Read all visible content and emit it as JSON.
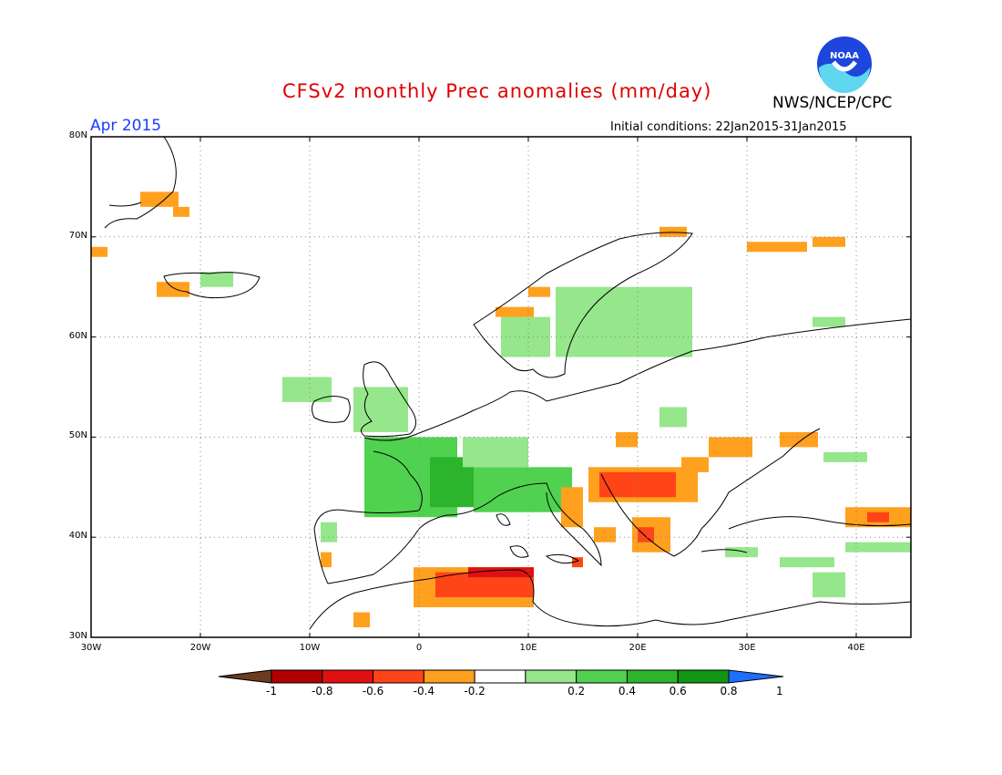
{
  "title": "CFSv2 monthly Prec anomalies (mm/day)",
  "agency": "NWS/NCEP/CPC",
  "logo_text": "NOAA",
  "valid_month": "Apr 2015",
  "initial_conditions": "Initial conditions: 22Jan2015-31Jan2015",
  "map": {
    "lon_range": [
      -30,
      45
    ],
    "lat_range": [
      30,
      80
    ],
    "lat_ticks": [
      "80N",
      "70N",
      "60N",
      "50N",
      "40N",
      "30N"
    ],
    "lon_ticks": [
      "30W",
      "20W",
      "10W",
      "0",
      "10E",
      "20E",
      "30E",
      "40E"
    ],
    "grid": "dotted"
  },
  "colorbar": {
    "ticks": [
      "-1",
      "-0.8",
      "-0.6",
      "-0.4",
      "-0.2",
      "0.2",
      "0.4",
      "0.6",
      "0.8",
      "1"
    ],
    "colors": {
      "below_-1": "#6b3c1e",
      "-1_-0.8": "#b20000",
      "-0.8_-0.6": "#e01010",
      "-0.6_-0.4": "#ff4418",
      "-0.4_-0.2": "#ffa01e",
      "-0.2_0.2": "#ffffff",
      "0.2_0.4": "#96e68c",
      "0.4_0.6": "#50d250",
      "0.6_0.8": "#2db42d",
      "0.8_1": "#119611",
      "above_1": "#1e6eff"
    }
  },
  "anomaly_cells": [
    {
      "lon": -25.5,
      "lat": 73.0,
      "w": 3.5,
      "h": 1.5,
      "cls": "-0.4_-0.2"
    },
    {
      "lon": -22.5,
      "lat": 72.0,
      "w": 1.5,
      "h": 1.0,
      "cls": "-0.4_-0.2"
    },
    {
      "lon": -30.0,
      "lat": 68.0,
      "w": 1.5,
      "h": 1.0,
      "cls": "-0.4_-0.2"
    },
    {
      "lon": -24.0,
      "lat": 64.0,
      "w": 3.0,
      "h": 1.5,
      "cls": "-0.4_-0.2"
    },
    {
      "lon": -20.0,
      "lat": 65.0,
      "w": 3.0,
      "h": 1.5,
      "cls": "0.2_0.4"
    },
    {
      "lon": -12.5,
      "lat": 53.5,
      "w": 4.5,
      "h": 2.5,
      "cls": "0.2_0.4"
    },
    {
      "lon": -6.0,
      "lat": 50.5,
      "w": 5.0,
      "h": 4.5,
      "cls": "0.2_0.4"
    },
    {
      "lon": -5.0,
      "lat": 42.0,
      "w": 8.5,
      "h": 8.0,
      "cls": "0.4_0.6"
    },
    {
      "lon": 1.0,
      "lat": 43.0,
      "w": 4.0,
      "h": 5.0,
      "cls": "0.6_0.8"
    },
    {
      "lon": 5.0,
      "lat": 42.5,
      "w": 9.0,
      "h": 4.5,
      "cls": "0.4_0.6"
    },
    {
      "lon": 4.0,
      "lat": 47.0,
      "w": 6.0,
      "h": 3.0,
      "cls": "0.2_0.4"
    },
    {
      "lon": -9.0,
      "lat": 39.5,
      "w": 1.5,
      "h": 2.0,
      "cls": "0.2_0.4"
    },
    {
      "lon": -9.0,
      "lat": 37.0,
      "w": 1.0,
      "h": 1.5,
      "cls": "-0.4_-0.2"
    },
    {
      "lon": 8.0,
      "lat": 59.0,
      "w": 3.0,
      "h": 1.5,
      "cls": "0.6_0.8"
    },
    {
      "lon": 7.5,
      "lat": 58.0,
      "w": 4.5,
      "h": 4.0,
      "cls": "0.2_0.4"
    },
    {
      "lon": 12.5,
      "lat": 58.0,
      "w": 12.5,
      "h": 7.0,
      "cls": "0.2_0.4"
    },
    {
      "lon": 7.0,
      "lat": 62.0,
      "w": 3.5,
      "h": 1.0,
      "cls": "-0.4_-0.2"
    },
    {
      "lon": 10.0,
      "lat": 64.0,
      "w": 2.0,
      "h": 1.0,
      "cls": "-0.4_-0.2"
    },
    {
      "lon": 22.0,
      "lat": 70.0,
      "w": 2.5,
      "h": 1.0,
      "cls": "-0.4_-0.2"
    },
    {
      "lon": 30.0,
      "lat": 68.5,
      "w": 5.5,
      "h": 1.0,
      "cls": "-0.4_-0.2"
    },
    {
      "lon": 36.0,
      "lat": 69.0,
      "w": 3.0,
      "h": 1.0,
      "cls": "-0.4_-0.2"
    },
    {
      "lon": 36.0,
      "lat": 61.0,
      "w": 3.0,
      "h": 1.0,
      "cls": "0.2_0.4"
    },
    {
      "lon": 22.0,
      "lat": 51.0,
      "w": 2.5,
      "h": 2.0,
      "cls": "0.2_0.4"
    },
    {
      "lon": 15.5,
      "lat": 43.5,
      "w": 10.0,
      "h": 3.5,
      "cls": "-0.4_-0.2"
    },
    {
      "lon": 16.5,
      "lat": 44.0,
      "w": 7.0,
      "h": 2.5,
      "cls": "-0.6_-0.4"
    },
    {
      "lon": 13.0,
      "lat": 41.0,
      "w": 2.0,
      "h": 4.0,
      "cls": "-0.4_-0.2"
    },
    {
      "lon": 16.0,
      "lat": 39.5,
      "w": 2.0,
      "h": 1.5,
      "cls": "-0.4_-0.2"
    },
    {
      "lon": 19.5,
      "lat": 38.5,
      "w": 3.5,
      "h": 3.5,
      "cls": "-0.4_-0.2"
    },
    {
      "lon": 20.0,
      "lat": 39.5,
      "w": 1.5,
      "h": 1.5,
      "cls": "-0.6_-0.4"
    },
    {
      "lon": 24.0,
      "lat": 46.5,
      "w": 2.5,
      "h": 1.5,
      "cls": "-0.4_-0.2"
    },
    {
      "lon": 26.5,
      "lat": 48.0,
      "w": 4.0,
      "h": 2.0,
      "cls": "-0.4_-0.2"
    },
    {
      "lon": 18.0,
      "lat": 49.0,
      "w": 2.0,
      "h": 1.5,
      "cls": "-0.4_-0.2"
    },
    {
      "lon": 33.0,
      "lat": 49.0,
      "w": 3.5,
      "h": 1.5,
      "cls": "-0.4_-0.2"
    },
    {
      "lon": 37.0,
      "lat": 47.5,
      "w": 4.0,
      "h": 1.0,
      "cls": "0.2_0.4"
    },
    {
      "lon": 39.0,
      "lat": 41.0,
      "w": 6.0,
      "h": 2.0,
      "cls": "-0.4_-0.2"
    },
    {
      "lon": 41.0,
      "lat": 41.5,
      "w": 2.0,
      "h": 1.0,
      "cls": "-0.6_-0.4"
    },
    {
      "lon": 39.0,
      "lat": 38.5,
      "w": 6.0,
      "h": 1.0,
      "cls": "0.2_0.4"
    },
    {
      "lon": 28.0,
      "lat": 38.0,
      "w": 3.0,
      "h": 1.0,
      "cls": "0.2_0.4"
    },
    {
      "lon": 33.0,
      "lat": 37.0,
      "w": 5.0,
      "h": 1.0,
      "cls": "0.2_0.4"
    },
    {
      "lon": 36.0,
      "lat": 34.0,
      "w": 3.0,
      "h": 2.5,
      "cls": "0.2_0.4"
    },
    {
      "lon": -0.5,
      "lat": 33.0,
      "w": 11.0,
      "h": 4.0,
      "cls": "-0.4_-0.2"
    },
    {
      "lon": 1.5,
      "lat": 34.0,
      "w": 9.0,
      "h": 2.5,
      "cls": "-0.6_-0.4"
    },
    {
      "lon": 4.5,
      "lat": 36.0,
      "w": 6.0,
      "h": 1.0,
      "cls": "-0.8_-0.6"
    },
    {
      "lon": -6.0,
      "lat": 31.0,
      "w": 1.5,
      "h": 1.5,
      "cls": "-0.4_-0.2"
    },
    {
      "lon": 14.0,
      "lat": 37.0,
      "w": 1.0,
      "h": 1.0,
      "cls": "-0.6_-0.4"
    }
  ]
}
